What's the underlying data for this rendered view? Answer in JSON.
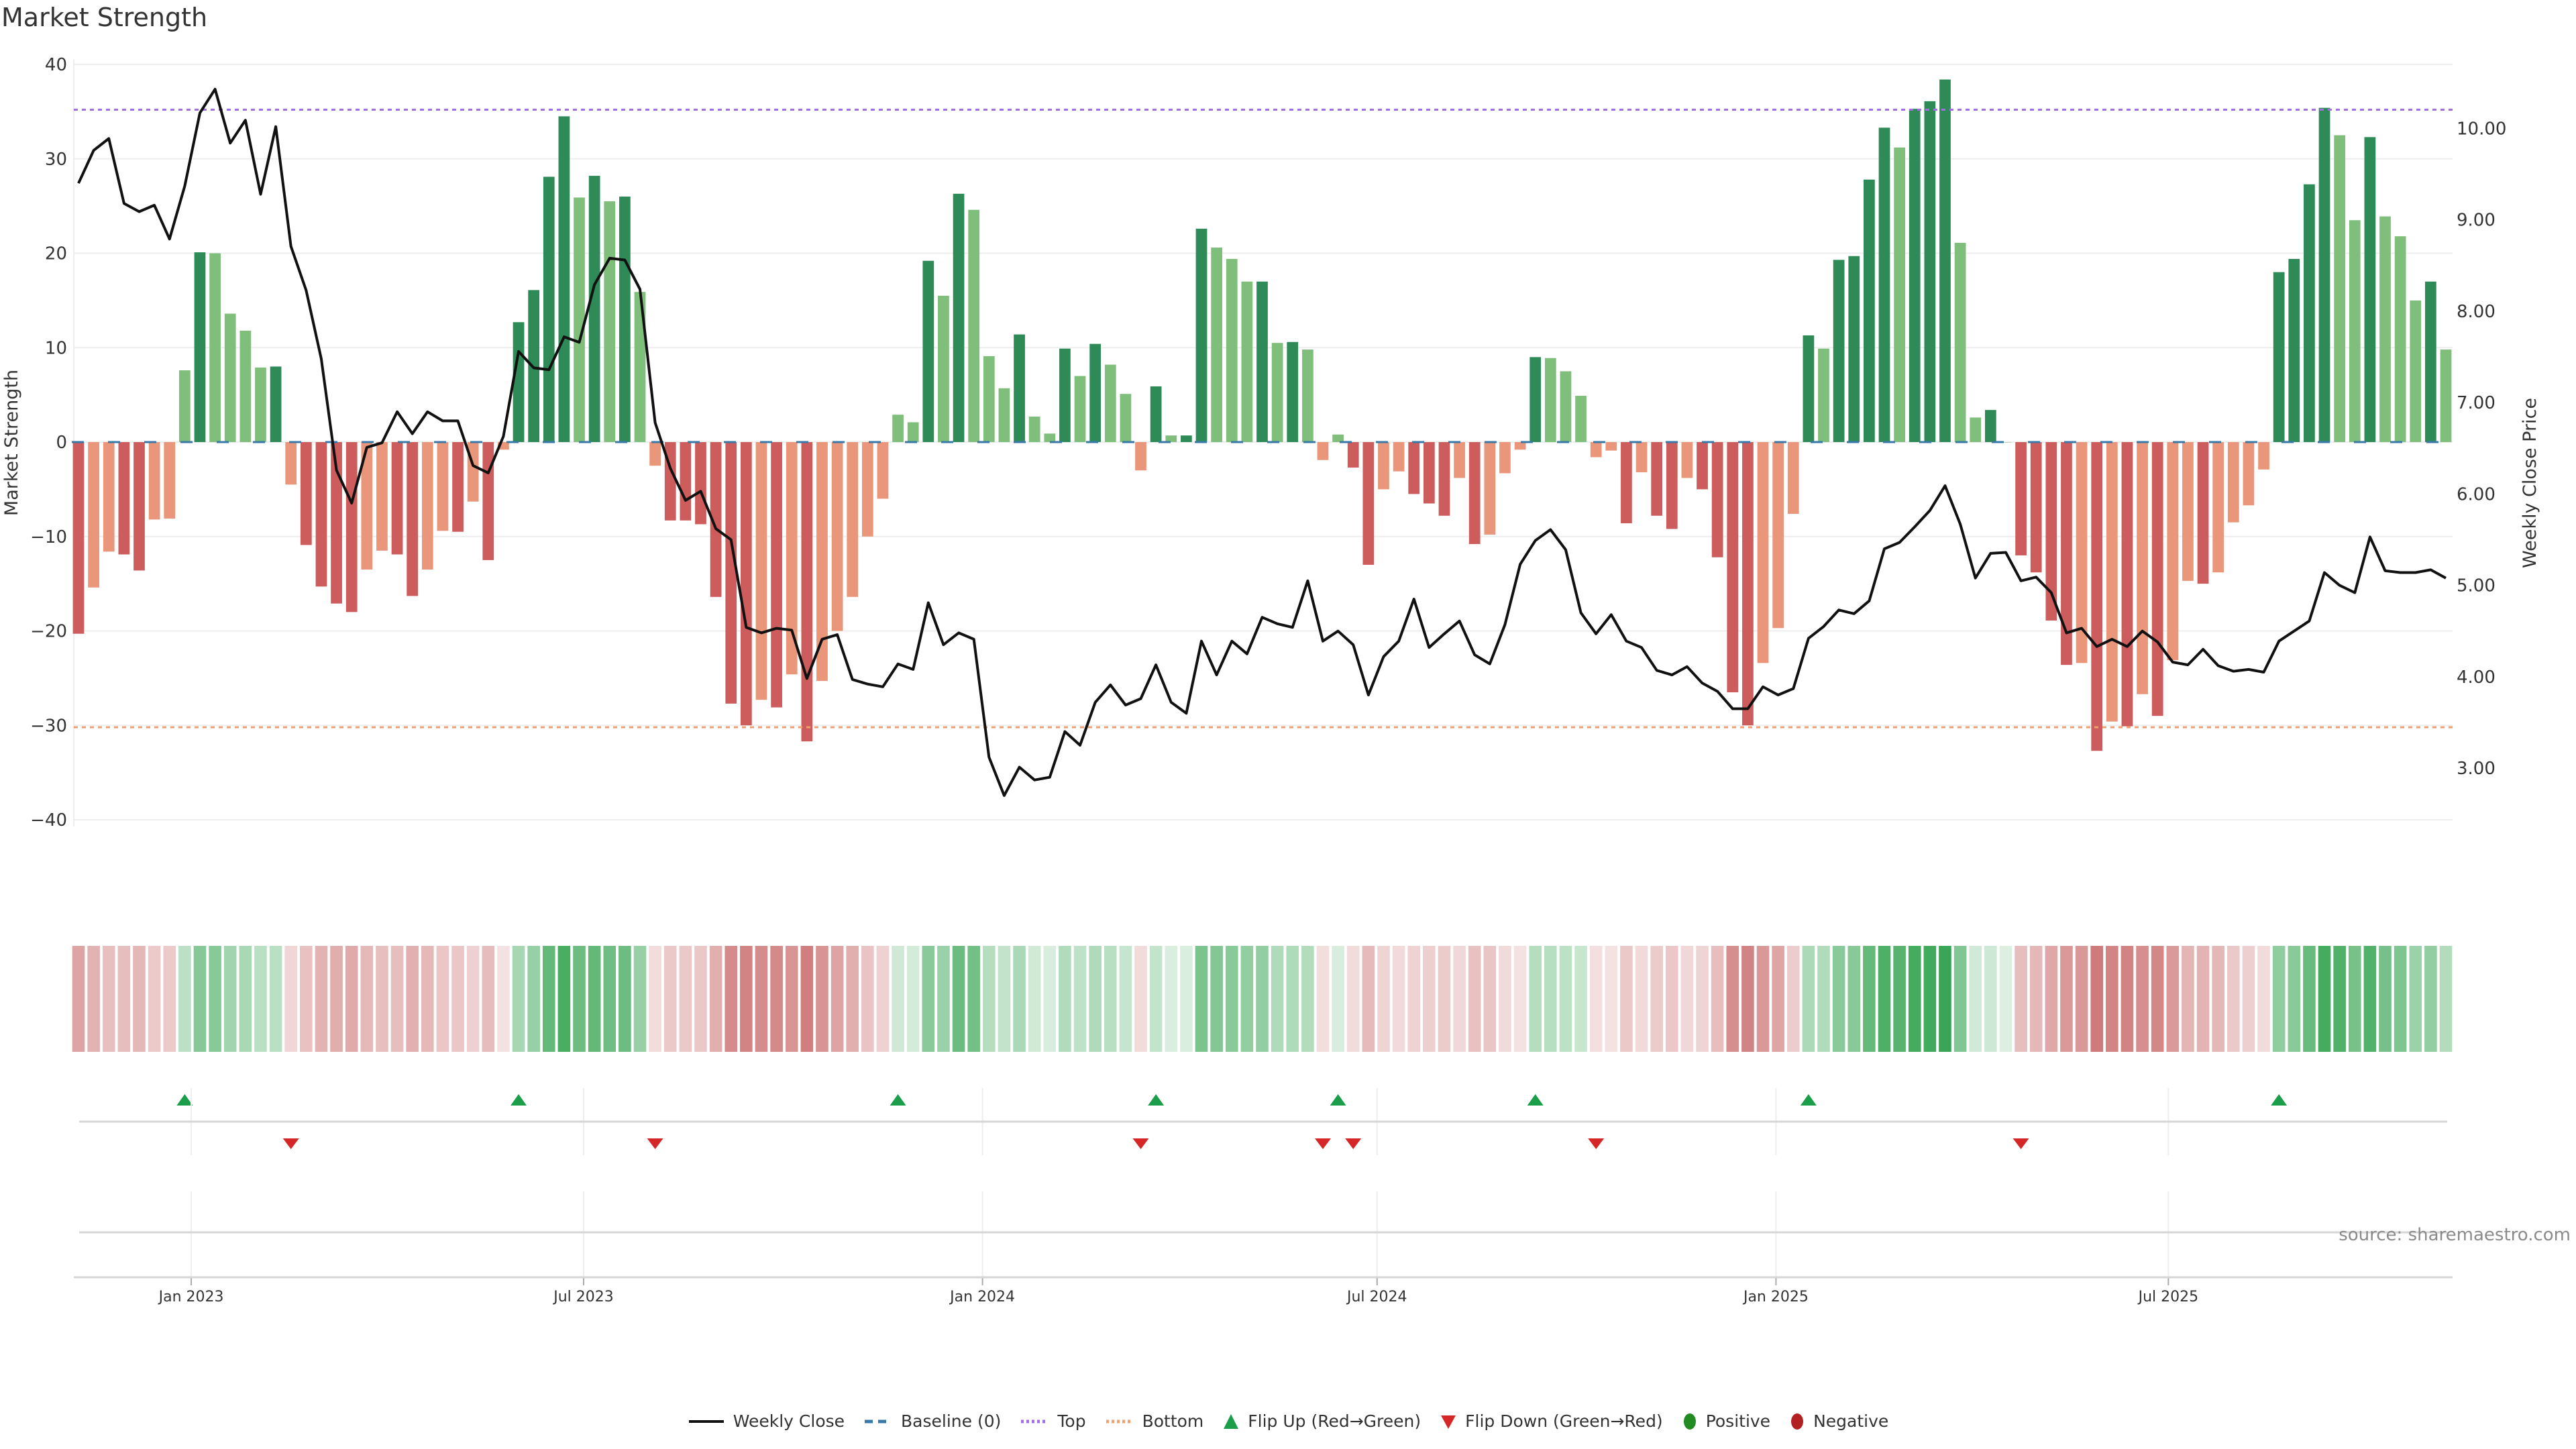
{
  "title": "Market Strength",
  "source": "source: sharemaestro.com",
  "legend": [
    {
      "key": "close",
      "label": "Weekly Close",
      "color": "#111111"
    },
    {
      "key": "baseline",
      "label": "Baseline (0)",
      "color": "#3a78a8"
    },
    {
      "key": "top",
      "label": "Top",
      "color": "#a070e0"
    },
    {
      "key": "bottom",
      "label": "Bottom",
      "color": "#f0a070"
    },
    {
      "key": "flipup",
      "label": "Flip Up (Red→Green)",
      "color": "#1a9e4a"
    },
    {
      "key": "flipdown",
      "label": "Flip Down (Green→Red)",
      "color": "#d62728"
    },
    {
      "key": "positive",
      "label": "Positive",
      "color": "#228b22"
    },
    {
      "key": "negative",
      "label": "Negative",
      "color": "#b22222"
    }
  ],
  "colors": {
    "pos_strong": "#2e8b57",
    "pos_weak": "#7fbf7b",
    "neg_strong": "#cd5c5c",
    "neg_weak": "#e9967a",
    "heat_pos": "#3aa655",
    "heat_neg": "#c96a6a"
  },
  "chart_data": {
    "type": "bar",
    "title": "Market Strength",
    "ylabel": "Market Strength",
    "y2label": "Weekly Close Price",
    "ylim": [
      -40,
      40
    ],
    "yticks": [
      40,
      30,
      20,
      10,
      0,
      -10,
      -20,
      -30,
      -40
    ],
    "y2lim": [
      2.3,
      10.6
    ],
    "y2ticks": [
      "3.00",
      "4.00",
      "5.00",
      "6.00",
      "7.00",
      "8.00",
      "9.00",
      "10.00"
    ],
    "top_level": 35.2,
    "bottom_level": -30.2,
    "start_date": "2022-11-10",
    "interval_days": 7,
    "xticks": [
      {
        "date": "2023-01-01",
        "label": "Jan 2023"
      },
      {
        "date": "2023-07-01",
        "label": "Jul 2023"
      },
      {
        "date": "2024-01-01",
        "label": "Jan 2024"
      },
      {
        "date": "2024-07-01",
        "label": "Jul 2024"
      },
      {
        "date": "2025-01-01",
        "label": "Jan 2025"
      },
      {
        "date": "2025-07-01",
        "label": "Jul 2025"
      }
    ],
    "strength": [
      -20.3,
      -15.4,
      -11.6,
      -11.9,
      -13.6,
      -8.2,
      -8.1,
      7.6,
      20.1,
      20.0,
      13.6,
      11.8,
      7.9,
      8.0,
      -4.5,
      -10.9,
      -15.3,
      -17.1,
      -18.0,
      -13.5,
      -11.5,
      -11.9,
      -16.3,
      -13.5,
      -9.4,
      -9.5,
      -6.3,
      -12.5,
      -0.8,
      12.7,
      16.1,
      28.1,
      34.5,
      25.9,
      28.2,
      25.5,
      26.0,
      15.9,
      -2.5,
      -8.3,
      -8.3,
      -8.7,
      -16.4,
      -27.7,
      -30.0,
      -27.3,
      -28.1,
      -24.6,
      -31.7,
      -25.3,
      -20.0,
      -16.4,
      -10.0,
      -6.0,
      2.9,
      2.1,
      19.2,
      15.5,
      26.3,
      24.6,
      9.1,
      5.7,
      11.4,
      2.7,
      0.9,
      9.9,
      7.0,
      10.4,
      8.2,
      5.1,
      -3.0,
      5.9,
      0.7,
      0.7,
      22.6,
      20.6,
      19.4,
      17.0,
      17.0,
      10.5,
      10.6,
      9.8,
      -1.9,
      0.8,
      -2.7,
      -13.0,
      -5.0,
      -3.1,
      -5.5,
      -6.5,
      -7.8,
      -3.8,
      -10.8,
      -9.8,
      -3.3,
      -0.8,
      9.0,
      8.9,
      7.5,
      4.9,
      -1.6,
      -0.9,
      -8.6,
      -3.2,
      -7.8,
      -9.2,
      -3.8,
      -5.0,
      -12.2,
      -26.5,
      -30.0,
      -23.4,
      -19.7,
      -7.6,
      11.3,
      9.9,
      19.3,
      19.7,
      27.8,
      33.3,
      31.2,
      35.3,
      36.1,
      38.4,
      21.1,
      2.6,
      3.4,
      0,
      -12.0,
      -13.8,
      -18.9,
      -23.6,
      -23.4,
      -32.7,
      -29.6,
      -30.1,
      -26.7,
      -29.0,
      -23.1,
      -14.7,
      -15.0,
      -13.8,
      -8.5,
      -6.7,
      -2.9,
      18.0,
      19.4,
      27.3,
      35.4,
      32.5,
      23.5,
      32.3,
      23.9,
      21.8,
      15.0,
      17.0,
      9.8
    ],
    "weekly_close": [
      9.4,
      9.76,
      9.89,
      9.18,
      9.09,
      9.16,
      8.79,
      9.37,
      10.17,
      10.43,
      9.84,
      10.09,
      9.28,
      10.02,
      8.71,
      8.23,
      7.48,
      6.26,
      5.9,
      6.51,
      6.56,
      6.9,
      6.66,
      6.9,
      6.8,
      6.8,
      6.31,
      6.23,
      6.63,
      7.56,
      7.38,
      7.36,
      7.72,
      7.66,
      8.29,
      8.58,
      8.56,
      8.24,
      6.78,
      6.28,
      5.93,
      6.03,
      5.62,
      5.5,
      4.54,
      4.48,
      4.53,
      4.51,
      3.98,
      4.41,
      4.46,
      3.97,
      3.92,
      3.89,
      4.14,
      4.08,
      4.81,
      4.35,
      4.48,
      4.41,
      3.12,
      2.7,
      3.01,
      2.87,
      2.9,
      3.4,
      3.25,
      3.72,
      3.91,
      3.69,
      3.76,
      4.13,
      3.72,
      3.6,
      4.39,
      4.02,
      4.39,
      4.25,
      4.65,
      4.58,
      4.54,
      5.05,
      4.39,
      4.5,
      4.35,
      3.8,
      4.22,
      4.39,
      4.85,
      4.32,
      4.47,
      4.61,
      4.24,
      4.14,
      4.57,
      5.23,
      5.49,
      5.61,
      5.39,
      4.7,
      4.47,
      4.68,
      4.39,
      4.32,
      4.07,
      4.02,
      4.11,
      3.93,
      3.84,
      3.65,
      3.65,
      3.89,
      3.8,
      3.87,
      4.42,
      4.55,
      4.73,
      4.69,
      4.83,
      5.4,
      5.47,
      5.64,
      5.82,
      6.09,
      5.67,
      5.08,
      5.35,
      5.36,
      5.05,
      5.09,
      4.92,
      4.48,
      4.53,
      4.33,
      4.41,
      4.33,
      4.5,
      4.38,
      4.16,
      4.13,
      4.3,
      4.12,
      4.06,
      4.08,
      4.05,
      4.39,
      4.5,
      4.61,
      5.14,
      5.0,
      4.92,
      5.53,
      5.16,
      5.14,
      5.14,
      5.17,
      5.08
    ],
    "legend_position": "bottom-center",
    "grid": true
  }
}
